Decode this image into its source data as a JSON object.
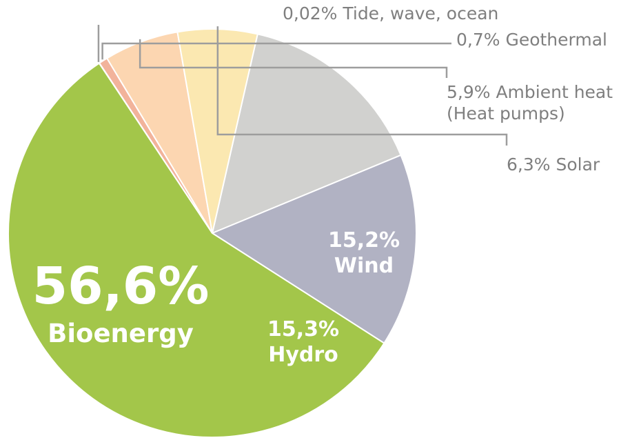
{
  "chart_data": {
    "type": "pie",
    "slices": [
      {
        "label": "Bioenergy",
        "value": 56.6,
        "value_text": "56,6%",
        "color": "#a3c64a"
      },
      {
        "label": "Tide, wave, ocean",
        "value": 0.02,
        "value_text": "0,02%",
        "color": "#e79a8c"
      },
      {
        "label": "Geothermal",
        "value": 0.7,
        "value_text": "0,7%",
        "color": "#f2b39b"
      },
      {
        "label": "Ambient heat (Heat pumps)",
        "label_lines": [
          "Ambient heat",
          "(Heat pumps)"
        ],
        "value": 5.9,
        "value_text": "5,9%",
        "color": "#fcd6b1"
      },
      {
        "label": "Solar",
        "value": 6.3,
        "value_text": "6,3%",
        "color": "#fbe8b1"
      },
      {
        "label": "Wind",
        "value": 15.2,
        "value_text": "15,2%",
        "color": "#d1d1cf"
      },
      {
        "label": "Hydro",
        "value": 15.3,
        "value_text": "15,3%",
        "color": "#b1b2c3"
      }
    ]
  }
}
